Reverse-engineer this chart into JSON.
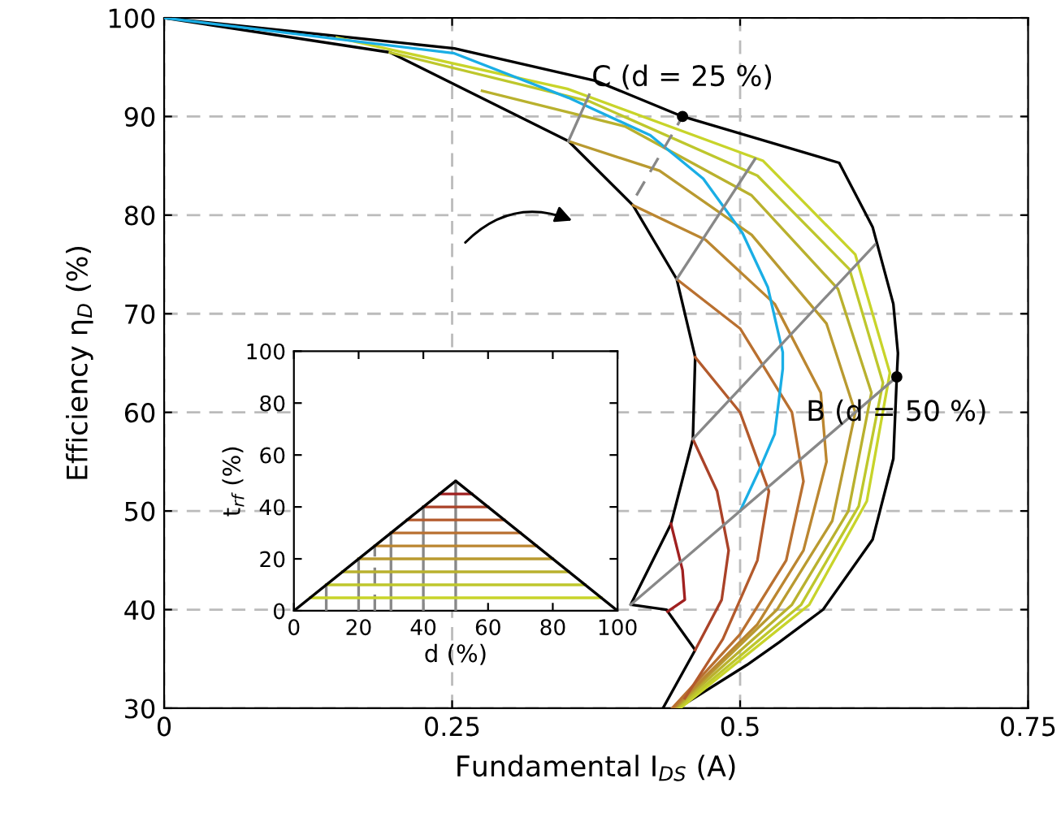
{
  "chart_data": [
    {
      "type": "line",
      "xlabel": "Fundamental I$_{DS}$ (A)",
      "ylabel": "Efficiency η$_{D}$ (%)",
      "xlim": [
        0,
        0.75
      ],
      "xticks": [
        0,
        0.25,
        0.5,
        0.75
      ],
      "ylim": [
        30,
        100
      ],
      "yticks": [
        30,
        40,
        50,
        60,
        70,
        80,
        90,
        100
      ],
      "grid": true,
      "legend": false,
      "series": [
        {
          "color": "#000000",
          "x": [
            0,
            0.252,
            0.375,
            0.45,
            0.586,
            0.615,
            0.633,
            0.637,
            0.636,
            0.633,
            0.615,
            0.572,
            0.534,
            0.506,
            0.446
          ],
          "values": [
            100,
            96.9,
            93.6,
            90,
            85.3,
            78.8,
            71.0,
            66,
            63.6,
            55.3,
            47.1,
            40.0,
            36.7,
            34.4,
            30
          ]
        },
        {
          "color": "#000000",
          "x": [
            0,
            0.196,
            0.351,
            0.407,
            0.445,
            0.461,
            0.459,
            0.44,
            0.405,
            0.436,
            0.461,
            0.433
          ],
          "values": [
            100,
            96.5,
            87.5,
            81,
            73.5,
            65.6,
            57.3,
            48.7,
            40.5,
            40,
            35.9,
            30
          ]
        },
        {
          "color": "#c8d42a",
          "x": [
            0.15,
            0.35,
            0.52,
            0.6,
            0.63,
            0.61,
            0.56,
            0.448
          ],
          "values": [
            98,
            92.8,
            85.5,
            76,
            64,
            51,
            40.5,
            30
          ]
        },
        {
          "color": "#bec72c",
          "x": [
            0.196,
            0.37,
            0.515,
            0.595,
            0.624,
            0.603,
            0.553,
            0.446
          ],
          "values": [
            96.5,
            91.5,
            84,
            74.5,
            63,
            50.5,
            40.5,
            30
          ]
        },
        {
          "color": "#b9b12e",
          "x": [
            0.276,
            0.4,
            0.51,
            0.585,
            0.614,
            0.594,
            0.545,
            0.444
          ],
          "values": [
            92.6,
            89,
            82,
            72.5,
            62,
            50,
            40.5,
            30
          ]
        },
        {
          "color": "#b99a30",
          "x": [
            0.351,
            0.43,
            0.51,
            0.575,
            0.6,
            0.58,
            0.532,
            0.443
          ],
          "values": [
            87.5,
            84.5,
            78,
            69,
            60,
            49,
            40,
            30
          ]
        },
        {
          "color": "#bb8630",
          "x": [
            0.407,
            0.47,
            0.53,
            0.57,
            0.575,
            0.555,
            0.515,
            0.442
          ],
          "values": [
            81,
            77.5,
            71,
            62,
            55,
            46,
            38.5,
            30
          ]
        },
        {
          "color": "#b97030",
          "x": [
            0.445,
            0.5,
            0.545,
            0.555,
            0.54,
            0.5,
            0.441
          ],
          "values": [
            73.5,
            68.5,
            60,
            53,
            45,
            37.5,
            30
          ]
        },
        {
          "color": "#b35a2c",
          "x": [
            0.461,
            0.5,
            0.525,
            0.515,
            0.485,
            0.452
          ],
          "values": [
            65.6,
            60,
            52,
            45,
            37,
            31
          ]
        },
        {
          "color": "#aa4228",
          "x": [
            0.459,
            0.48,
            0.49,
            0.484,
            0.461
          ],
          "values": [
            57.3,
            52,
            46,
            41,
            35.9
          ]
        },
        {
          "color": "#a02020",
          "x": [
            0.44,
            0.45,
            0.452,
            0.437
          ],
          "values": [
            48.7,
            44,
            41,
            39.8
          ]
        },
        {
          "color": "#1aaee5",
          "x": [
            0,
            0.252,
            0.351,
            0.422,
            0.468,
            0.502,
            0.524,
            0.537,
            0.537,
            0.53,
            0.516,
            0.5
          ],
          "values": [
            100,
            96.4,
            91.9,
            88.1,
            83.7,
            78.2,
            72.7,
            66.1,
            64.4,
            57.8,
            54.0,
            50
          ]
        },
        {
          "color": "#888888",
          "x": [
            0.405,
            0.636
          ],
          "values": [
            40.5,
            63.6
          ]
        },
        {
          "color": "#888888",
          "x": [
            0.459,
            0.617
          ],
          "values": [
            57.3,
            77
          ]
        },
        {
          "color": "#888888",
          "x": [
            0.445,
            0.513
          ],
          "values": [
            73.5,
            85.7
          ]
        },
        {
          "color": "#888888",
          "x": [
            0.41,
            0.45
          ],
          "values": [
            82,
            90
          ],
          "line_style": "dashed"
        },
        {
          "color": "#888888",
          "x": [
            0.351,
            0.369
          ],
          "values": [
            87.5,
            92.2
          ]
        }
      ],
      "annotations": [
        {
          "text": "C (d = 25 %)",
          "x": 0.45,
          "y": 90
        },
        {
          "text": "B (d = 50 %)",
          "x": 0.636,
          "y": 63.6
        }
      ]
    },
    {
      "type": "line",
      "xlabel": "d (%)",
      "ylabel": "t$_{rf}$ (%)",
      "xlim": [
        0,
        100
      ],
      "xticks": [
        0,
        20,
        40,
        60,
        80,
        100
      ],
      "ylim": [
        0,
        100
      ],
      "yticks": [
        0,
        20,
        40,
        60,
        80,
        100
      ],
      "grid": false,
      "series": [
        {
          "color": "#888888",
          "x": [
            10,
            10
          ],
          "values": [
            0,
            10
          ]
        },
        {
          "color": "#888888",
          "x": [
            20,
            20
          ],
          "values": [
            0,
            20
          ]
        },
        {
          "color": "#888888",
          "x": [
            25,
            25
          ],
          "values": [
            0,
            25
          ],
          "line_style": "dashed"
        },
        {
          "color": "#888888",
          "x": [
            30,
            30
          ],
          "values": [
            0,
            30
          ]
        },
        {
          "color": "#888888",
          "x": [
            40,
            40
          ],
          "values": [
            0,
            40
          ]
        },
        {
          "color": "#888888",
          "x": [
            50,
            50
          ],
          "values": [
            0,
            50
          ]
        },
        {
          "color": "#c8d42a",
          "x": [
            5,
            95
          ],
          "values": [
            5,
            5
          ]
        },
        {
          "color": "#bec72c",
          "x": [
            10,
            90
          ],
          "values": [
            10,
            10
          ]
        },
        {
          "color": "#b9b12e",
          "x": [
            15,
            85
          ],
          "values": [
            15,
            15
          ]
        },
        {
          "color": "#b99a30",
          "x": [
            20,
            80
          ],
          "values": [
            20,
            20
          ]
        },
        {
          "color": "#bb8630",
          "x": [
            25,
            75
          ],
          "values": [
            25,
            25
          ]
        },
        {
          "color": "#b97030",
          "x": [
            30,
            70
          ],
          "values": [
            30,
            30
          ]
        },
        {
          "color": "#b35a2c",
          "x": [
            35,
            65
          ],
          "values": [
            35,
            35
          ]
        },
        {
          "color": "#aa4228",
          "x": [
            40,
            60
          ],
          "values": [
            40,
            40
          ]
        },
        {
          "color": "#a02020",
          "x": [
            45,
            55
          ],
          "values": [
            45,
            45
          ]
        },
        {
          "color": "#000000",
          "x": [
            0,
            50,
            100
          ],
          "values": [
            0,
            50,
            0
          ]
        }
      ]
    }
  ]
}
